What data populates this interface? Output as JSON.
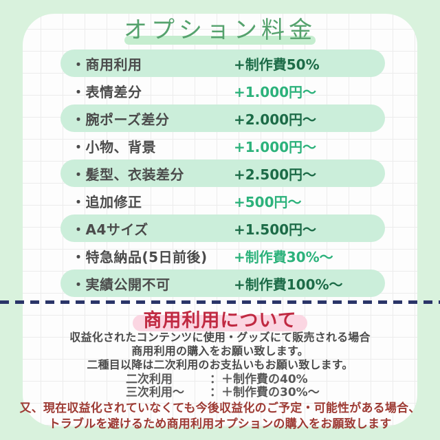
{
  "title": {
    "text": "オプション料金"
  },
  "price_rows": [
    {
      "label": "・商用利用",
      "price": "+制作費50%",
      "highlighted": true
    },
    {
      "label": "・表情差分",
      "price": "+1.000円〜",
      "highlighted": false
    },
    {
      "label": "・腕ポーズ差分",
      "price": "+2.000円〜",
      "highlighted": true
    },
    {
      "label": "・小物、背景",
      "price": "+1.000円〜",
      "highlighted": false
    },
    {
      "label": "・髪型、衣装差分",
      "price": "+2.500円〜",
      "highlighted": true
    },
    {
      "label": "・追加修正",
      "price": "+500円〜",
      "highlighted": false
    },
    {
      "label": "・A4サイズ",
      "price": "+1.500円〜",
      "highlighted": true
    },
    {
      "label": "・特急納品(5日前後)",
      "price": "+制作費30%〜",
      "highlighted": false
    },
    {
      "label": "・実績公開不可",
      "price": "+制作費100%〜",
      "highlighted": true
    }
  ],
  "commercial_section": {
    "heading": "商用利用について",
    "body_lines": [
      "収益化されたコンテンツに使用・グッズにて販売される場合",
      "商用利用の購入をお願い致します。",
      "二種目以降は二次利用のお支払いもお願い致します。"
    ],
    "sub_items": [
      {
        "label": "二次利用",
        "value": "：＋制作費の40%"
      },
      {
        "label": "三次利用〜",
        "value": "：＋制作費の30%〜"
      }
    ],
    "note_lines": [
      "又、現在収益化されていなくても今後収益化のご予定・可能性がある場合、",
      "トラブルを避けるため商用利用オプションの購入をお願致します"
    ]
  },
  "colors": {
    "outer_background": "#d9f2dd",
    "paper": "#fdfdfd",
    "grid_line": "#ececec",
    "row_pill": "#cbeeda",
    "title_green": "#55a26d",
    "title_marker": "#c5edcf",
    "label_gray": "#4b4b4b",
    "price_bright_green": "#2cb27b",
    "price_dark_green": "#1c6b47",
    "divider_navy": "#2a3568",
    "heading_red": "#c02a42",
    "heading_pink": "#fbd6e2",
    "note_red": "#9d3a33"
  }
}
